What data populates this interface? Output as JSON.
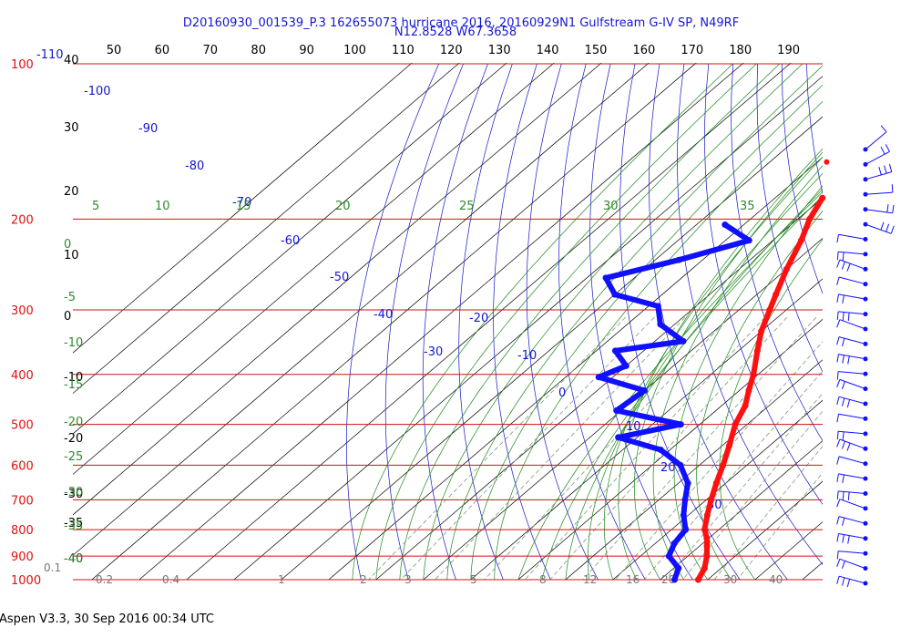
{
  "header": {
    "title_line1": "D20160930_001539_P.3 162655073 hurricane 2016, 20160929N1 Gulfstream G-IV SP, N49RF",
    "title_line2": "N12.8528 W67.3658"
  },
  "footer": {
    "text": "Aspen V3.3, 30 Sep 2016  00:34 UTC"
  },
  "colors": {
    "temperature": "#ff1010",
    "dewpoint": "#1010ff",
    "isobar": "#d01010",
    "dry_adiabat": "#1414c8",
    "moist_adiabat": "#1a8a1a",
    "mixing_ratio": "#7a9a7a",
    "isotherm": "#000000"
  },
  "chart_data": {
    "type": "skew-t",
    "title": "D20160930_001539_P.3 162655073 hurricane 2016, 20160929N1 Gulfstream G-IV SP, N49RF",
    "subtitle": "N12.8528 W67.3658",
    "pressure_levels": [
      100,
      200,
      300,
      400,
      500,
      600,
      700,
      800,
      900,
      1000
    ],
    "pressure_labels": [
      "100",
      "200",
      "300",
      "400",
      "500",
      "600",
      "700",
      "800",
      "900",
      "1000"
    ],
    "height_labels": [
      "40",
      "30",
      "20",
      "10",
      "0",
      "-10",
      "-20",
      "-30",
      "-35",
      "-40"
    ],
    "top_axis_labels": [
      "50",
      "60",
      "70",
      "80",
      "90",
      "100",
      "110",
      "120",
      "130",
      "140",
      "150",
      "160",
      "170",
      "180",
      "190"
    ],
    "theta_labels": [
      "-110",
      "-100",
      "-90",
      "-80",
      "-70",
      "-60",
      "-50",
      "-40",
      "-30",
      "-20",
      "-10",
      "0",
      "10",
      "20",
      "30"
    ],
    "moist_labels": [
      "5",
      "10",
      "15",
      "20",
      "25",
      "30",
      "35"
    ],
    "left_moist_labels": [
      "0",
      "-5",
      "-10",
      "-15",
      "-20",
      "-25",
      "-30",
      "-35",
      "-40"
    ],
    "mixing_ratio_labels": [
      "0.1",
      "0.2",
      "0.4",
      "1",
      "2",
      "3",
      "5",
      "8",
      "12",
      "16",
      "20",
      "30",
      "40"
    ],
    "temperature": [
      {
        "p": 182,
        "t": -40.0
      },
      {
        "p": 200,
        "t": -37.5
      },
      {
        "p": 220,
        "t": -34.0
      },
      {
        "p": 250,
        "t": -30.0
      },
      {
        "p": 280,
        "t": -26.0
      },
      {
        "p": 300,
        "t": -23.5
      },
      {
        "p": 330,
        "t": -20.0
      },
      {
        "p": 360,
        "t": -16.0
      },
      {
        "p": 400,
        "t": -11.0
      },
      {
        "p": 430,
        "t": -8.0
      },
      {
        "p": 460,
        "t": -5.0
      },
      {
        "p": 500,
        "t": -2.5
      },
      {
        "p": 550,
        "t": 1.5
      },
      {
        "p": 600,
        "t": 5.0
      },
      {
        "p": 650,
        "t": 8.0
      },
      {
        "p": 700,
        "t": 11.0
      },
      {
        "p": 750,
        "t": 14.0
      },
      {
        "p": 800,
        "t": 17.0
      },
      {
        "p": 830,
        "t": 19.5
      },
      {
        "p": 860,
        "t": 21.5
      },
      {
        "p": 900,
        "t": 24.0
      },
      {
        "p": 950,
        "t": 26.5
      },
      {
        "p": 1000,
        "t": 28.0
      }
    ],
    "dewpoint": [
      {
        "p": 205,
        "t": -54.0
      },
      {
        "p": 220,
        "t": -45.0
      },
      {
        "p": 240,
        "t": -55.0
      },
      {
        "p": 260,
        "t": -66.0
      },
      {
        "p": 280,
        "t": -60.0
      },
      {
        "p": 295,
        "t": -48.0
      },
      {
        "p": 320,
        "t": -43.0
      },
      {
        "p": 345,
        "t": -34.0
      },
      {
        "p": 360,
        "t": -46.0
      },
      {
        "p": 385,
        "t": -40.0
      },
      {
        "p": 405,
        "t": -43.0
      },
      {
        "p": 430,
        "t": -30.0
      },
      {
        "p": 470,
        "t": -31.0
      },
      {
        "p": 500,
        "t": -14.0
      },
      {
        "p": 530,
        "t": -24.0
      },
      {
        "p": 560,
        "t": -12.0
      },
      {
        "p": 600,
        "t": -4.0
      },
      {
        "p": 650,
        "t": 2.0
      },
      {
        "p": 700,
        "t": 5.5
      },
      {
        "p": 750,
        "t": 9.0
      },
      {
        "p": 800,
        "t": 13.0
      },
      {
        "p": 850,
        "t": 14.0
      },
      {
        "p": 900,
        "t": 16.0
      },
      {
        "p": 950,
        "t": 21.0
      },
      {
        "p": 1000,
        "t": 23.0
      }
    ],
    "isolated_point": {
      "p": 155,
      "t": -48.0
    },
    "wind_barbs_count": 30,
    "grid": true
  }
}
